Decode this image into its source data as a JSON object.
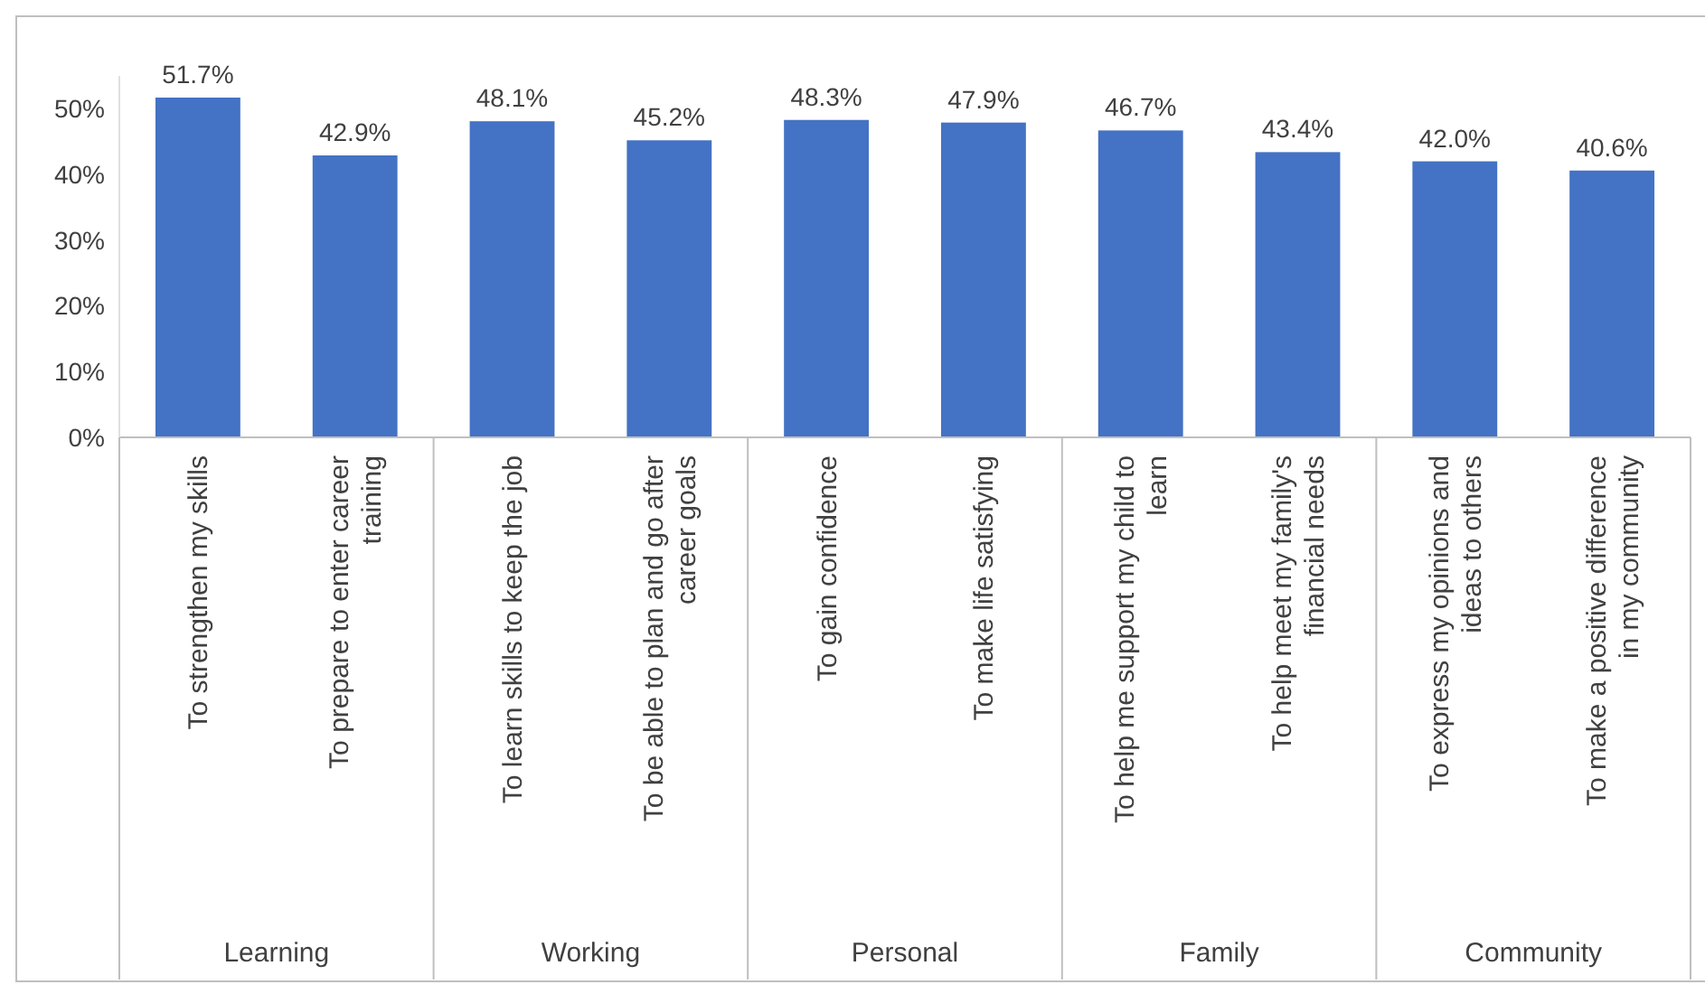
{
  "chart_data": {
    "type": "bar",
    "categories": [
      "To strengthen my skills",
      "To prepare to enter career training",
      "To learn skills to keep the job",
      "To be able to plan and go after career goals",
      "To gain confidence",
      "To make life satisfying",
      "To help me support my child to learn",
      "To help meet my family's financial needs",
      "To express my opinions and ideas to others",
      "To make a positive difference in my community"
    ],
    "values": [
      51.7,
      42.9,
      48.1,
      45.2,
      48.3,
      47.9,
      46.7,
      43.4,
      42.0,
      40.6
    ],
    "value_labels": [
      "51.7%",
      "42.9%",
      "48.1%",
      "45.2%",
      "48.3%",
      "47.9%",
      "46.7%",
      "43.4%",
      "42.0%",
      "40.6%"
    ],
    "color": "#4472c4",
    "ylim": [
      0,
      55
    ],
    "yticks": [
      {
        "value": 0,
        "label": "0%"
      },
      {
        "value": 10,
        "label": "10%"
      },
      {
        "value": 20,
        "label": "20%"
      },
      {
        "value": 30,
        "label": "30%"
      },
      {
        "value": 40,
        "label": "40%"
      },
      {
        "value": 50,
        "label": "50%"
      }
    ],
    "annotations": [
      "Learning",
      "Working",
      "Personal",
      "Family",
      "Community"
    ],
    "grid": false
  }
}
